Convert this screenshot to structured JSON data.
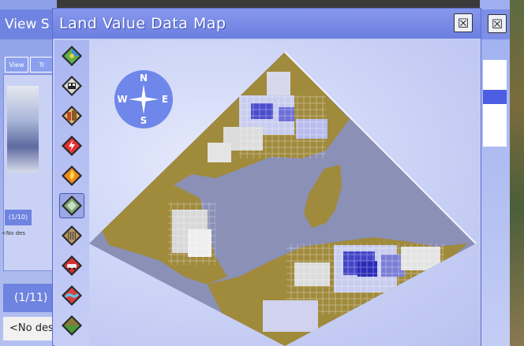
{
  "background_left": {
    "title": "View S",
    "tabs": [
      "View",
      "Tr"
    ],
    "small_counter": "(1/10)",
    "small_desc": "<No des",
    "counter": "(1/11)",
    "description": "<No des"
  },
  "window": {
    "title": "Land Value Data Map",
    "close_glyph": "☒"
  },
  "background_right": {
    "close_glyph": "☒"
  },
  "toolbar": {
    "items": [
      {
        "name": "terrain-icon"
      },
      {
        "name": "transit-icon"
      },
      {
        "name": "buildings-icon"
      },
      {
        "name": "power-icon"
      },
      {
        "name": "fire-icon"
      },
      {
        "name": "land-value-icon",
        "selected": true
      },
      {
        "name": "crime-icon"
      },
      {
        "name": "traffic-icon"
      },
      {
        "name": "water-icon"
      },
      {
        "name": "landform-icon"
      }
    ]
  },
  "compass": {
    "n": "N",
    "s": "S",
    "e": "E",
    "w": "W"
  },
  "colors": {
    "titlebar": "#6b7fe0",
    "water": "#8a8fb4",
    "land": "#a08a3c",
    "high_value": "#3c3ccd",
    "medium_value": "#9aa0e0",
    "low_value": "#dcdcdc"
  }
}
